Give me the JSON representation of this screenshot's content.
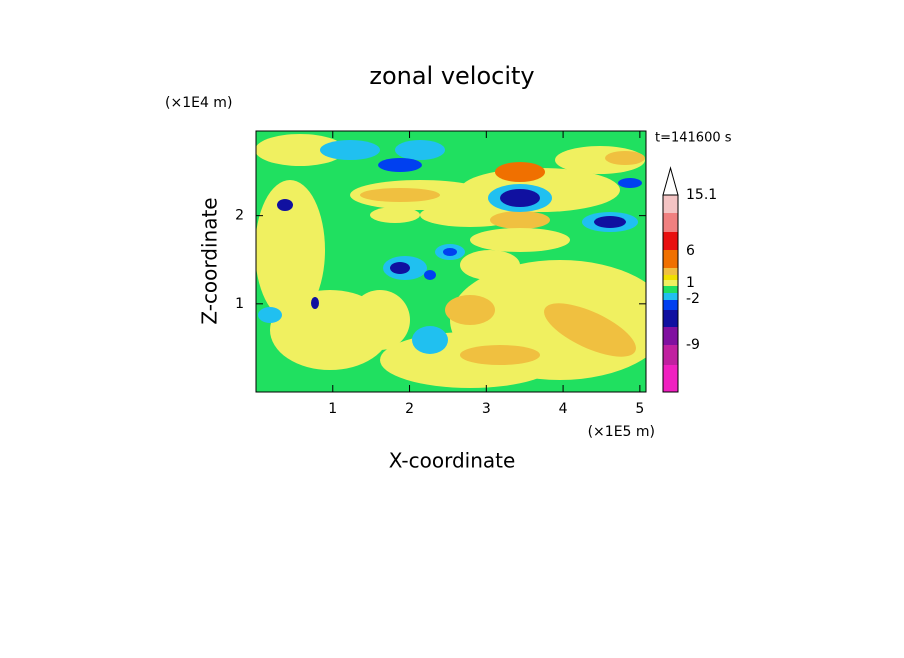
{
  "chart_data": {
    "type": "contour",
    "title": "zonal velocity",
    "x_label": "X-coordinate",
    "y_label": "Z-coordinate",
    "x_unit": "(×1E5 m)",
    "y_unit": "(×1E4 m)",
    "time_label": "t=141600 s",
    "xlim": [
      0,
      5.08
    ],
    "xticks": [
      1,
      2,
      3,
      4,
      5
    ],
    "ylim": [
      0,
      2.96
    ],
    "yticks": [
      1,
      2
    ],
    "colorbar": {
      "colors": [
        "#f020c0",
        "#c020a0",
        "#8010a0",
        "#1010a0",
        "#0040f0",
        "#20c0f0",
        "#20e060",
        "#f0f060",
        "#f0e000",
        "#f0c040",
        "#f07000",
        "#e81010",
        "#f08080",
        "#f4c4c4"
      ],
      "ticks": [
        -9,
        -2,
        1,
        6,
        15.1
      ]
    }
  }
}
